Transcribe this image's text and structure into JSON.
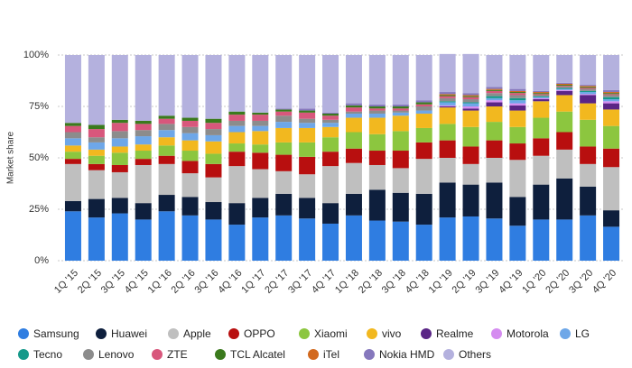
{
  "chart_data": {
    "type": "stacked_bar",
    "y_label": "Market share",
    "categories": [
      "1Q '15",
      "2Q '15",
      "3Q '15",
      "4Q '15",
      "1Q '16",
      "2Q '16",
      "3Q '16",
      "4Q '16",
      "1Q '17",
      "2Q '17",
      "3Q '17",
      "4Q '17",
      "1Q '18",
      "2Q '18",
      "3Q '18",
      "4Q '18",
      "1Q '19",
      "2Q '19",
      "3Q '19",
      "4Q '19",
      "1Q '20",
      "2Q '20",
      "3Q '20",
      "4Q '20"
    ],
    "ylim": [
      0,
      100
    ],
    "yticks": [
      {
        "value": 0,
        "label": "0%"
      },
      {
        "value": 25,
        "label": "25%"
      },
      {
        "value": 50,
        "label": "50%"
      },
      {
        "value": 75,
        "label": "75%"
      },
      {
        "value": 100,
        "label": "100%"
      }
    ],
    "grid": true,
    "series": [
      {
        "name": "Samsung",
        "color": "#2f7de1",
        "values": [
          24,
          21,
          23,
          20,
          24,
          22,
          20,
          17.5,
          21,
          22,
          20.5,
          18,
          22,
          19.5,
          19,
          17.5,
          21,
          21.5,
          20.5,
          17,
          20,
          20,
          22,
          16.5
        ]
      },
      {
        "name": "Huawei",
        "color": "#0e1f3d",
        "values": [
          5,
          9,
          7.5,
          8,
          8,
          9,
          8.5,
          10.5,
          9.5,
          10.5,
          10,
          10,
          10.5,
          15,
          14,
          15,
          17,
          15.5,
          17.5,
          14,
          17,
          20,
          14,
          8
        ]
      },
      {
        "name": "Apple",
        "color": "#bfbfbf",
        "values": [
          18,
          14,
          12.5,
          18.5,
          15,
          11.5,
          12,
          18,
          14,
          11,
          11.5,
          18,
          15,
          12,
          12,
          17,
          12,
          10,
          12,
          18,
          14,
          14,
          11,
          21
        ]
      },
      {
        "name": "OPPO",
        "color": "#b80f0f",
        "values": [
          2.5,
          3,
          3.5,
          3,
          4,
          6,
          6.5,
          7,
          8,
          8,
          8.5,
          7,
          7,
          7,
          8.5,
          8,
          8.5,
          8.5,
          8.5,
          8,
          8.5,
          8.5,
          8.5,
          9
        ]
      },
      {
        "name": "Xiaomi",
        "color": "#8cc63f",
        "values": [
          3.5,
          4,
          6,
          4,
          5,
          5,
          5,
          4,
          4,
          6,
          7,
          7,
          8,
          8,
          9.5,
          7,
          8,
          9.5,
          9,
          8,
          10,
          10,
          13,
          11
        ]
      },
      {
        "name": "vivo",
        "color": "#f2b81f",
        "values": [
          3,
          3,
          3,
          3,
          4,
          5,
          6,
          5.5,
          6.5,
          7,
          7,
          5,
          7,
          8,
          7.5,
          7,
          8,
          8,
          7.5,
          8,
          8,
          8,
          8,
          8
        ]
      },
      {
        "name": "Realme",
        "color": "#5a2586",
        "values": [
          0,
          0,
          0,
          0,
          0,
          0,
          0,
          0,
          0,
          0,
          0,
          0,
          0,
          0,
          0,
          0,
          0.5,
          1,
          2,
          2.5,
          1,
          2,
          4,
          3
        ]
      },
      {
        "name": "Motorola",
        "color": "#d58cf0",
        "values": [
          0,
          0,
          0,
          0,
          0,
          0,
          0,
          0,
          0,
          0,
          0,
          0,
          0,
          0,
          0,
          0,
          0.5,
          1,
          1,
          1,
          0.5,
          0.5,
          0.5,
          1
        ]
      },
      {
        "name": "LG",
        "color": "#6ea7e8",
        "values": [
          3.5,
          3.5,
          4,
          4,
          3.5,
          3.5,
          3,
          3,
          2.5,
          3,
          2.5,
          2,
          2,
          2,
          1.5,
          1.5,
          1.5,
          1.5,
          1,
          1.5,
          0.5,
          0.5,
          1,
          1
        ]
      },
      {
        "name": "Tecno",
        "color": "#16998a",
        "values": [
          0,
          0,
          0,
          0,
          0,
          0,
          0,
          0,
          0,
          0,
          0,
          0,
          0,
          0,
          0,
          0,
          0.5,
          0.5,
          1,
          1,
          0.5,
          0.5,
          0.5,
          1
        ]
      },
      {
        "name": "Lenovo",
        "color": "#8c8c8c",
        "values": [
          3,
          2.5,
          3.5,
          3,
          3,
          3,
          3,
          2.5,
          2.5,
          3,
          2,
          1.5,
          1,
          1.5,
          1,
          2,
          1.5,
          1.5,
          1.5,
          1.5,
          0.5,
          0.5,
          1,
          1
        ]
      },
      {
        "name": "ZTE",
        "color": "#d8577c",
        "values": [
          3,
          4,
          4,
          3,
          2.5,
          3,
          3,
          3,
          3,
          2,
          3,
          2,
          2,
          1,
          1,
          1,
          1,
          1,
          1,
          1,
          0.5,
          0.5,
          0.5,
          0.5
        ]
      },
      {
        "name": "TCL Alcatel",
        "color": "#3b7a1d",
        "values": [
          1.5,
          2,
          1.5,
          1.5,
          1.5,
          1.5,
          2,
          1.5,
          1,
          1,
          1,
          1,
          1,
          1,
          1,
          1,
          0.5,
          0.5,
          0.5,
          0.5,
          0.5,
          0.5,
          0.5,
          0.5
        ]
      },
      {
        "name": "iTel",
        "color": "#d2691e",
        "values": [
          0,
          0,
          0,
          0,
          0,
          0,
          0,
          0,
          0,
          0,
          0,
          0,
          0,
          0,
          0,
          0,
          0.5,
          0.5,
          0.5,
          0.5,
          0.5,
          0.5,
          0.5,
          0.5
        ]
      },
      {
        "name": "Nokia HMD",
        "color": "#8678bd",
        "values": [
          0,
          0,
          0,
          0,
          0,
          0,
          0,
          0,
          0,
          0.5,
          1,
          0.5,
          1,
          1,
          1,
          1,
          1,
          1,
          1,
          1,
          0.5,
          0.5,
          0.5,
          1
        ]
      },
      {
        "name": "Others",
        "color": "#b4b1de",
        "values": [
          33,
          34,
          31.5,
          32,
          29.5,
          30.5,
          31,
          27.5,
          28,
          26,
          26,
          28,
          23.5,
          24,
          24,
          22,
          18.5,
          19,
          15.5,
          16.5,
          17.5,
          13.5,
          14.5,
          17
        ]
      }
    ]
  }
}
